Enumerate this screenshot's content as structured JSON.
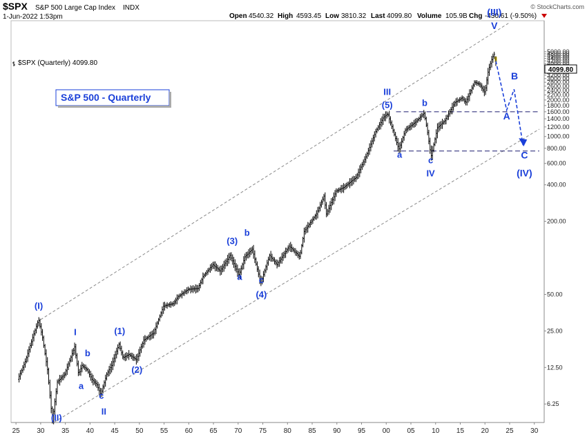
{
  "header": {
    "symbol": "$SPX",
    "name": "S&P 500 Large Cap Index",
    "exchange": "INDX",
    "date": "1-Jun-2022 1:53pm",
    "open_label": "Open",
    "open_value": "4540.32",
    "high_label": "High",
    "high_value": "4593.45",
    "low_label": "Low",
    "low_value": "3810.32",
    "last_label": "Last",
    "last_value": "4099.80",
    "volume_label": "Volume",
    "volume_value": "105.9B",
    "chg_label": "Chg",
    "chg_value": "-430.61 (-9.50%)",
    "copyright": "© StockCharts.com"
  },
  "legend_text": "$SPX (Quarterly) 4099.80",
  "price_label": "4099.80",
  "colors": {
    "wave": "#1a3fd9",
    "bar": "#000000",
    "last_bar": "#e8c800",
    "channel": "#888888",
    "guide": "#1a1a6e",
    "down": "#cc0000"
  },
  "chart_data": {
    "type": "ohlc",
    "title": "S&P 500 - Quarterly",
    "scale": "log",
    "xlim": [
      1924,
      2032
    ],
    "ylim": [
      4.4,
      9000
    ],
    "x_ticks": [
      1925,
      1930,
      1935,
      1940,
      1945,
      1950,
      1955,
      1960,
      1965,
      1970,
      1975,
      1980,
      1985,
      1990,
      1995,
      2000,
      2005,
      2010,
      2015,
      2020,
      2025,
      2030
    ],
    "x_tick_labels": [
      "25",
      "30",
      "35",
      "40",
      "45",
      "50",
      "55",
      "60",
      "65",
      "70",
      "75",
      "80",
      "85",
      "90",
      "95",
      "00",
      "05",
      "10",
      "15",
      "20",
      "25",
      "30"
    ],
    "y_ticks": [
      6.25,
      12.5,
      25,
      50,
      200,
      400,
      600,
      800,
      1000,
      1200,
      1400,
      1600,
      1800,
      2000,
      2200,
      2400,
      2600,
      2800,
      3000,
      3200,
      3400,
      3600,
      3800,
      4000,
      4200,
      4400,
      4600,
      4800,
      5000
    ],
    "y_tick_labels": [
      "6.25",
      "12.50",
      "25.00",
      "50.00",
      "200.00",
      "400.00",
      "600.00",
      "800.00",
      "1000.00",
      "1200.00",
      "1400.00",
      "1600.00",
      "1800.00",
      "2000.00",
      "2200.00",
      "2400.00",
      "2600.00",
      "2800.00",
      "3000.00",
      "3200.00",
      "3400.00",
      "3600.00",
      "3800.00",
      "4000.00",
      "4200.00",
      "4400.00",
      "4600.00",
      "4800.00",
      "5000.00"
    ],
    "last_bar": {
      "open": 4540.32,
      "high": 4593.45,
      "low": 3810.32,
      "close": 4099.8
    },
    "price_path": [
      [
        1925.5,
        10
      ],
      [
        1927,
        14
      ],
      [
        1928.5,
        22
      ],
      [
        1929.7,
        31
      ],
      [
        1930.5,
        22
      ],
      [
        1931.5,
        12
      ],
      [
        1932.5,
        4.5
      ],
      [
        1933.5,
        9.5
      ],
      [
        1935,
        11
      ],
      [
        1937.0,
        18.5
      ],
      [
        1937.8,
        11
      ],
      [
        1938.5,
        13
      ],
      [
        1939.5,
        12
      ],
      [
        1940.5,
        10
      ],
      [
        1941.5,
        9
      ],
      [
        1942.3,
        7.5
      ],
      [
        1943.5,
        11
      ],
      [
        1944.5,
        13
      ],
      [
        1946.0,
        19.5
      ],
      [
        1946.8,
        15
      ],
      [
        1948,
        16
      ],
      [
        1949.5,
        14.5
      ],
      [
        1951,
        21
      ],
      [
        1953,
        24
      ],
      [
        1955,
        40
      ],
      [
        1957,
        42
      ],
      [
        1958,
        48
      ],
      [
        1960,
        55
      ],
      [
        1962,
        56
      ],
      [
        1963,
        70
      ],
      [
        1965,
        88
      ],
      [
        1966.5,
        78
      ],
      [
        1968.5,
        105
      ],
      [
        1970.3,
        72
      ],
      [
        1971.5,
        102
      ],
      [
        1973.0,
        118
      ],
      [
        1974.7,
        62
      ],
      [
        1976.5,
        105
      ],
      [
        1978,
        88
      ],
      [
        1980.5,
        125
      ],
      [
        1982.6,
        102
      ],
      [
        1983.5,
        165
      ],
      [
        1986,
        230
      ],
      [
        1987.6,
        330
      ],
      [
        1987.9,
        225
      ],
      [
        1990,
        355
      ],
      [
        1991.5,
        380
      ],
      [
        1994,
        460
      ],
      [
        1996,
        680
      ],
      [
        1998,
        1100
      ],
      [
        1999.5,
        1420
      ],
      [
        2000.4,
        1550
      ],
      [
        2001.5,
        1120
      ],
      [
        2002.7,
        780
      ],
      [
        2004,
        1130
      ],
      [
        2006,
        1310
      ],
      [
        2007.8,
        1560
      ],
      [
        2008.4,
        1150
      ],
      [
        2009.2,
        680
      ],
      [
        2010.5,
        1180
      ],
      [
        2012,
        1350
      ],
      [
        2014,
        1900
      ],
      [
        2015.5,
        2080
      ],
      [
        2016.2,
        1900
      ],
      [
        2018,
        2800
      ],
      [
        2019,
        2700
      ],
      [
        2020.1,
        2300
      ],
      [
        2020.8,
        3500
      ],
      [
        2021.5,
        4300
      ],
      [
        2021.95,
        4780
      ]
    ],
    "channel_upper": [
      [
        1930,
        31
      ],
      [
        2025,
        8700
      ]
    ],
    "channel_lower": [
      [
        1932.8,
        4.45
      ],
      [
        2031,
        1150
      ]
    ],
    "guide_1600": {
      "level": 1600,
      "x_from": 2002,
      "x_to": 2031
    },
    "guide_800": {
      "level": 760,
      "x_from": 2001.5,
      "x_to": 2031
    },
    "projection": [
      [
        2022.2,
        4200
      ],
      [
        2024.4,
        1650
      ],
      [
        2025.9,
        2450
      ],
      [
        2027.7,
        850
      ]
    ],
    "wave_labels": [
      {
        "text": "(I)",
        "x": 1929.6,
        "y": 38,
        "size": 13
      },
      {
        "text": "(II)",
        "x": 1933.2,
        "y": 4.55,
        "size": 13
      },
      {
        "text": "I",
        "x": 1937.0,
        "y": 23,
        "size": 13
      },
      {
        "text": "a",
        "x": 1938.2,
        "y": 8.3,
        "size": 13
      },
      {
        "text": "b",
        "x": 1939.5,
        "y": 15.5,
        "size": 13
      },
      {
        "text": "c",
        "x": 1942.3,
        "y": 6.9,
        "size": 13
      },
      {
        "text": "II",
        "x": 1942.8,
        "y": 5.1,
        "size": 13
      },
      {
        "text": "(1)",
        "x": 1946.0,
        "y": 23.5,
        "size": 13
      },
      {
        "text": "(2)",
        "x": 1949.5,
        "y": 11.3,
        "size": 13
      },
      {
        "text": "(3)",
        "x": 1968.8,
        "y": 130,
        "size": 13
      },
      {
        "text": "a",
        "x": 1970.3,
        "y": 66,
        "size": 13
      },
      {
        "text": "b",
        "x": 1971.8,
        "y": 152,
        "size": 13
      },
      {
        "text": "c",
        "x": 1974.7,
        "y": 62,
        "size": 13
      },
      {
        "text": "(4)",
        "x": 1974.7,
        "y": 47,
        "size": 13
      },
      {
        "text": "III",
        "x": 2000.2,
        "y": 2200,
        "size": 13
      },
      {
        "text": "(5)",
        "x": 2000.2,
        "y": 1720,
        "size": 13
      },
      {
        "text": "a",
        "x": 2002.7,
        "y": 670,
        "size": 13
      },
      {
        "text": "b",
        "x": 2007.8,
        "y": 1780,
        "size": 13
      },
      {
        "text": "c",
        "x": 2009.0,
        "y": 600,
        "size": 13
      },
      {
        "text": "IV",
        "x": 2009.0,
        "y": 470,
        "size": 13
      },
      {
        "text": "(III)",
        "x": 2021.9,
        "y": 9900,
        "size": 14
      },
      {
        "text": "V",
        "x": 2021.9,
        "y": 7700,
        "size": 14
      },
      {
        "text": "A",
        "x": 2024.4,
        "y": 1380,
        "size": 14
      },
      {
        "text": "B",
        "x": 2026.0,
        "y": 2950,
        "size": 14
      },
      {
        "text": "C",
        "x": 2028.0,
        "y": 660,
        "size": 14
      },
      {
        "text": "(IV)",
        "x": 2028.0,
        "y": 470,
        "size": 14
      }
    ]
  }
}
